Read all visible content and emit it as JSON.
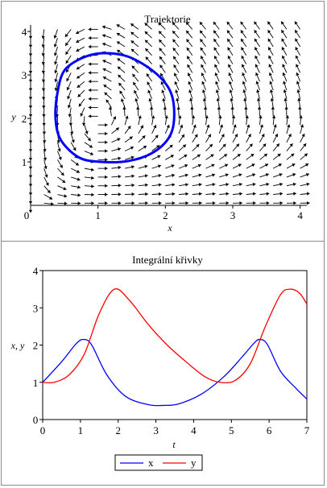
{
  "chart_data": [
    {
      "type": "line",
      "title": "Trajektorie",
      "xlabel": "x",
      "ylabel": "y",
      "xlim": [
        0,
        4.1
      ],
      "ylim": [
        0,
        4.15
      ],
      "xticks": [
        "0",
        "1",
        "2",
        "3",
        "4"
      ],
      "yticks": [
        "1",
        "2",
        "3",
        "4"
      ],
      "field": "direction-field",
      "series": [
        {
          "color": "#0000ff",
          "x": [
            0.5,
            0.75,
            1.05,
            1.45,
            1.85,
            2.08,
            2.13,
            2.05,
            1.8,
            1.45,
            1.05,
            0.72,
            0.45,
            0.37,
            0.4,
            0.5
          ],
          "y": [
            3.1,
            3.38,
            3.5,
            3.42,
            3.05,
            2.6,
            2.0,
            1.55,
            1.2,
            1.02,
            1.0,
            1.1,
            1.5,
            2.0,
            2.6,
            3.1
          ]
        }
      ]
    },
    {
      "type": "line",
      "title": "Integrální křivky",
      "xlabel": "t",
      "ylabel": "x, y",
      "xlim": [
        0,
        7
      ],
      "ylim": [
        0,
        4
      ],
      "xticks": [
        "0",
        "1",
        "2",
        "3",
        "4",
        "5",
        "6",
        "7"
      ],
      "yticks": [
        "0",
        "1",
        "2",
        "3",
        "4"
      ],
      "legend": "bottom",
      "series": [
        {
          "name": "x",
          "color": "#0000ff",
          "x": [
            0,
            0.5,
            0.9,
            1.1,
            1.3,
            1.7,
            2.2,
            2.8,
            3.2,
            3.6,
            4.2,
            4.8,
            5.3,
            5.6,
            5.75,
            5.95,
            6.3,
            6.7,
            7
          ],
          "y": [
            1.0,
            1.55,
            2.05,
            2.15,
            2.0,
            1.2,
            0.62,
            0.4,
            0.38,
            0.42,
            0.68,
            1.15,
            1.7,
            2.05,
            2.15,
            2.02,
            1.3,
            0.85,
            0.55
          ]
        },
        {
          "name": "y",
          "color": "#ff0000",
          "x": [
            0,
            0.3,
            0.7,
            1.1,
            1.5,
            1.9,
            2.3,
            2.8,
            3.3,
            3.8,
            4.3,
            4.7,
            5.1,
            5.5,
            5.9,
            6.3,
            6.55,
            6.8,
            7
          ],
          "y": [
            1.0,
            1.0,
            1.2,
            1.75,
            2.85,
            3.5,
            3.2,
            2.55,
            2.0,
            1.55,
            1.15,
            1.0,
            1.05,
            1.5,
            2.5,
            3.35,
            3.5,
            3.4,
            3.1
          ]
        }
      ]
    }
  ]
}
